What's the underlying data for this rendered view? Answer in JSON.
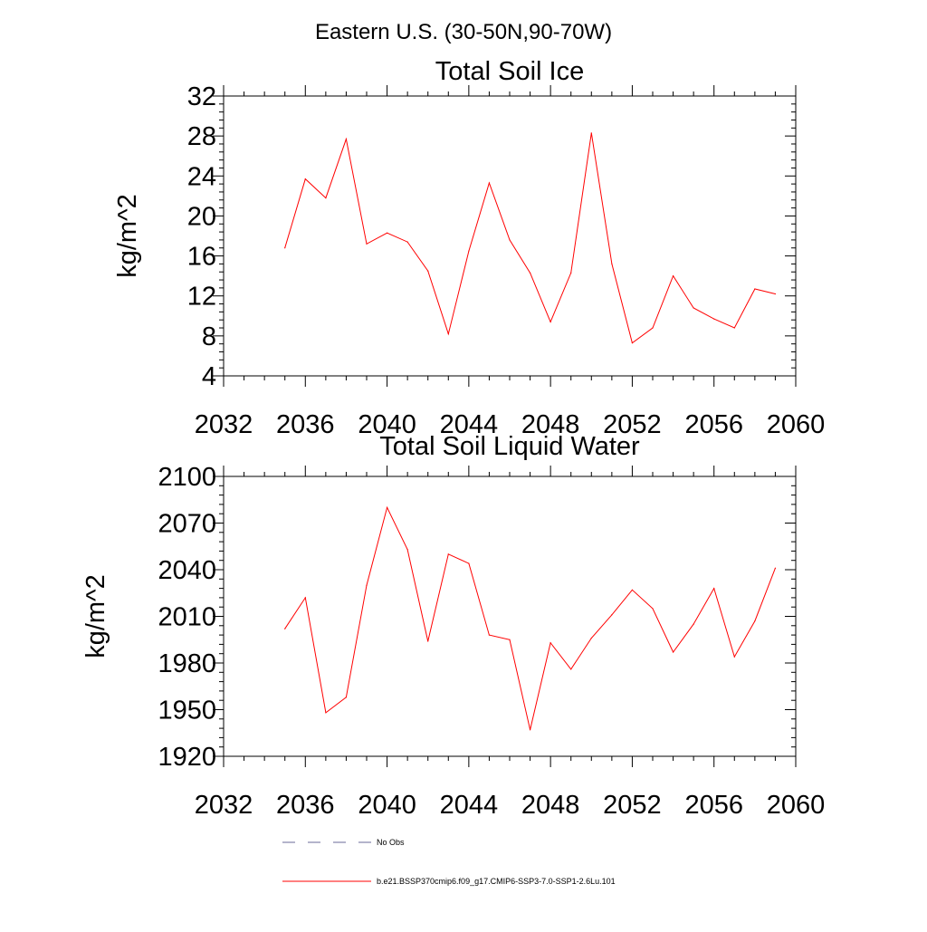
{
  "figure": {
    "title": "Eastern U.S. (30-50N,90-70W)"
  },
  "colors": {
    "series": "#ff0000",
    "obs": "#6a6a9a",
    "axis": "#000000"
  },
  "legend": {
    "obs_label": "No Obs",
    "model_label": "b.e21.BSSP370cmip6.f09_g17.CMIP6-SSP3-7.0-SSP1-2.6Lu.101"
  },
  "chart_data": [
    {
      "type": "line",
      "title": "Total Soil Ice",
      "xlabel": "",
      "ylabel": "kg/m^2",
      "xlim": [
        2032,
        2060
      ],
      "ylim": [
        4,
        32
      ],
      "x_ticks": [
        2032,
        2036,
        2040,
        2044,
        2048,
        2052,
        2056,
        2060
      ],
      "x_tick_labels": [
        "2032",
        "2036",
        "2040",
        "2044",
        "2048",
        "2052",
        "2056",
        "2060"
      ],
      "y_ticks": [
        4,
        8,
        12,
        16,
        20,
        24,
        28,
        32
      ],
      "y_tick_labels": [
        "4",
        "8",
        "12",
        "16",
        "20",
        "24",
        "28",
        "32"
      ],
      "grid": false,
      "series": [
        {
          "color": "#ff0000",
          "x": [
            2035,
            2036,
            2037,
            2038,
            2039,
            2040,
            2041,
            2042,
            2043,
            2044,
            2045,
            2046,
            2047,
            2048,
            2049,
            2050,
            2051,
            2052,
            2053,
            2054,
            2055,
            2056,
            2057,
            2058,
            2059
          ],
          "y": [
            16.8,
            23.7,
            21.8,
            27.7,
            17.2,
            18.3,
            17.4,
            14.5,
            8.2,
            16.5,
            23.3,
            17.6,
            14.3,
            9.4,
            14.3,
            28.3,
            15.2,
            7.3,
            8.8,
            14.0,
            10.8,
            9.7,
            8.8,
            12.7,
            12.2
          ]
        }
      ]
    },
    {
      "type": "line",
      "title": "Total Soil Liquid Water",
      "xlabel": "",
      "ylabel": "kg/m^2",
      "xlim": [
        2032,
        2060
      ],
      "ylim": [
        1920,
        2100
      ],
      "x_ticks": [
        2032,
        2036,
        2040,
        2044,
        2048,
        2052,
        2056,
        2060
      ],
      "x_tick_labels": [
        "2032",
        "2036",
        "2040",
        "2044",
        "2048",
        "2052",
        "2056",
        "2060"
      ],
      "y_ticks": [
        1920,
        1950,
        1980,
        2010,
        2040,
        2070,
        2100
      ],
      "y_tick_labels": [
        "1920",
        "1950",
        "1980",
        "2010",
        "2040",
        "2070",
        "2100"
      ],
      "grid": false,
      "series": [
        {
          "color": "#ff0000",
          "x": [
            2035,
            2036,
            2037,
            2038,
            2039,
            2040,
            2041,
            2042,
            2043,
            2044,
            2045,
            2046,
            2047,
            2048,
            2049,
            2050,
            2051,
            2052,
            2053,
            2054,
            2055,
            2056,
            2057,
            2058,
            2059
          ],
          "y": [
            2002,
            2022,
            1948,
            1958,
            2030,
            2080,
            2053,
            1994,
            2050,
            2044,
            1998,
            1995,
            1937,
            1993,
            1976,
            1996,
            2011,
            2027,
            2015,
            1987,
            2005,
            2028,
            1984,
            2007,
            2041
          ]
        }
      ]
    }
  ]
}
